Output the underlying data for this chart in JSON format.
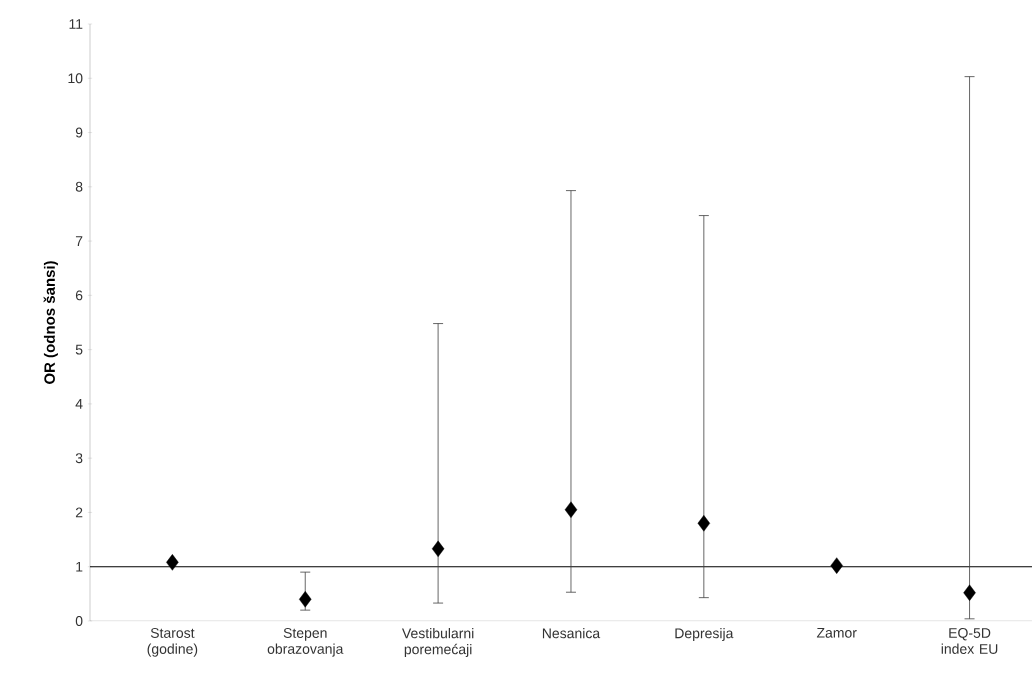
{
  "chart_data": {
    "type": "scatter",
    "ylabel": "OR (odnos šansi)",
    "categories": [
      "Starost (godine)",
      "Stepen obrazovanja",
      "Vestibularni poremećaji",
      "Nesanica",
      "Depresija",
      "Zamor",
      "EQ-5D index EU"
    ],
    "values": [
      1.08,
      0.4,
      1.33,
      2.05,
      1.8,
      1.02,
      0.52
    ],
    "errors": [
      null,
      [
        0.2,
        0.9
      ],
      [
        0.33,
        5.48
      ],
      [
        0.53,
        7.93
      ],
      [
        0.43,
        7.47
      ],
      null,
      [
        0.04,
        10.03
      ]
    ],
    "color": "#000000",
    "marker": "diamond",
    "ylim": [
      0,
      11
    ],
    "yticks": [
      0,
      1,
      2,
      3,
      4,
      5,
      6,
      7,
      8,
      9,
      10,
      11
    ],
    "ref_lines": [
      {
        "axis": "y",
        "value": 1,
        "color": "#000000"
      }
    ],
    "grid": false
  }
}
